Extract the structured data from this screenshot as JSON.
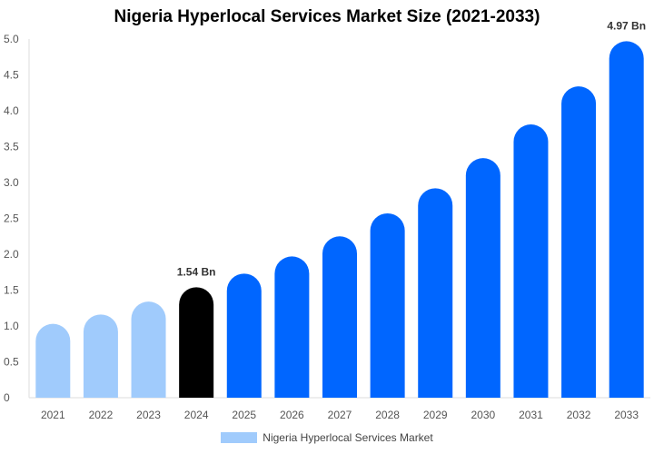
{
  "chart_data": {
    "type": "bar",
    "title": "Nigeria Hyperlocal Services Market Size (2021-2033)",
    "categories": [
      "2021",
      "2022",
      "2023",
      "2024",
      "2025",
      "2026",
      "2027",
      "2028",
      "2029",
      "2030",
      "2031",
      "2032",
      "2033"
    ],
    "series": [
      {
        "name": "Nigeria Hyperlocal Services Market",
        "values": [
          1.03,
          1.16,
          1.34,
          1.54,
          1.73,
          1.97,
          2.25,
          2.57,
          2.92,
          3.34,
          3.81,
          4.34,
          4.97
        ]
      }
    ],
    "data_labels": {
      "3": "1.54 Bn",
      "12": "4.97 Bn"
    },
    "bar_colors": [
      "#a0cbfc",
      "#a0cbfc",
      "#a0cbfc",
      "#000000",
      "#0066ff",
      "#0066ff",
      "#0066ff",
      "#0066ff",
      "#0066ff",
      "#0066ff",
      "#0066ff",
      "#0066ff",
      "#0066ff"
    ],
    "yticks": [
      "0",
      "0.5",
      "1.0",
      "1.5",
      "2.0",
      "2.5",
      "3.0",
      "3.5",
      "4.0",
      "4.5",
      "5.0"
    ],
    "ylim": [
      0,
      5
    ],
    "grid": false,
    "legend_placement": "bottom"
  }
}
